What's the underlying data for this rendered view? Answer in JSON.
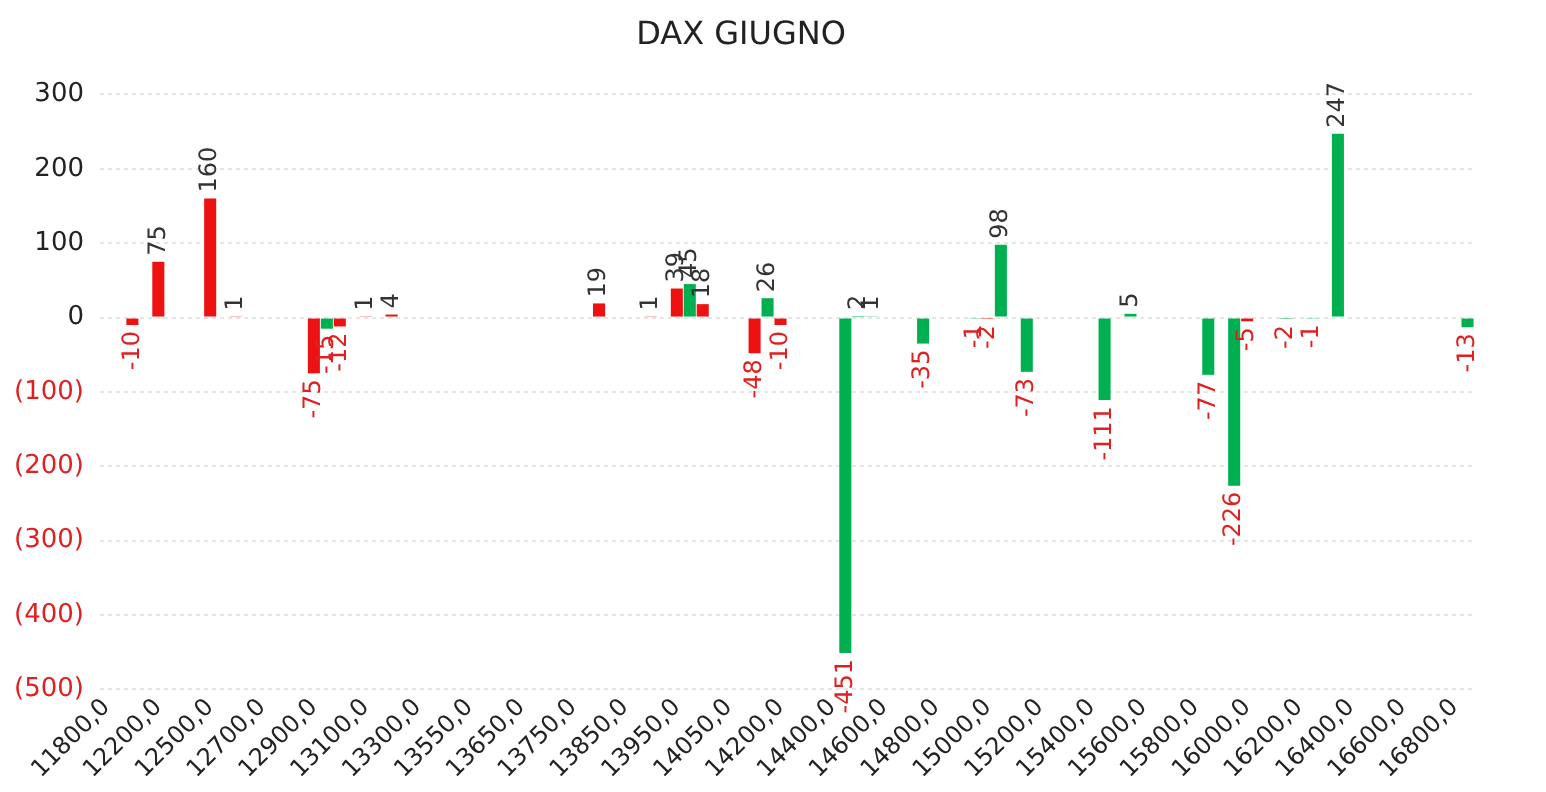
{
  "chart_data": {
    "type": "bar",
    "title": "DAX GIUGNO",
    "categories": [
      "11800,0",
      null,
      null,
      null,
      "12200,0",
      null,
      null,
      null,
      "12500,0",
      null,
      null,
      null,
      "12700,0",
      null,
      null,
      null,
      "12900,0",
      null,
      null,
      null,
      "13100,0",
      null,
      null,
      null,
      "13300,0",
      null,
      null,
      null,
      "13550,0",
      null,
      null,
      null,
      "13650,0",
      null,
      null,
      null,
      "13750,0",
      null,
      null,
      null,
      "13850,0",
      null,
      null,
      null,
      "13950,0",
      null,
      null,
      null,
      "14050,0",
      null,
      null,
      null,
      "14200,0",
      null,
      null,
      null,
      "14400,0",
      null,
      null,
      null,
      "14600,0",
      null,
      null,
      null,
      "14800,0",
      null,
      null,
      null,
      "15000,0",
      null,
      null,
      null,
      "15200,0",
      null,
      null,
      null,
      "15400,0",
      null,
      null,
      null,
      "15600,0",
      null,
      null,
      null,
      "15800,0",
      null,
      null,
      null,
      "16000,0",
      null,
      null,
      null,
      "16200,0",
      null,
      null,
      null,
      "16400,0",
      null,
      null,
      null,
      "16600,0",
      null,
      null,
      null,
      "16800,0",
      null
    ],
    "values": [
      null,
      null,
      -10,
      null,
      75,
      null,
      null,
      null,
      160,
      null,
      1,
      null,
      null,
      null,
      null,
      null,
      -75,
      -15,
      -12,
      null,
      1,
      null,
      4,
      null,
      null,
      null,
      null,
      null,
      null,
      null,
      null,
      null,
      null,
      null,
      null,
      null,
      null,
      null,
      19,
      null,
      null,
      null,
      1,
      null,
      39,
      45,
      18,
      null,
      null,
      null,
      -48,
      26,
      -10,
      null,
      null,
      null,
      null,
      -451,
      2,
      1,
      null,
      null,
      null,
      -35,
      null,
      null,
      null,
      -1,
      -2,
      98,
      null,
      -73,
      null,
      null,
      null,
      null,
      null,
      -111,
      null,
      5,
      null,
      null,
      null,
      null,
      null,
      -77,
      null,
      -226,
      -5,
      null,
      null,
      -2,
      null,
      -1,
      null,
      247,
      null,
      null,
      null,
      null,
      null,
      null,
      null,
      null,
      null,
      -13
    ],
    "colors": [
      null,
      null,
      "#ee1111",
      null,
      "#ee1111",
      null,
      null,
      null,
      "#ee1111",
      null,
      "#ee1111",
      null,
      null,
      null,
      null,
      null,
      "#ee1111",
      "#00b050",
      "#ee1111",
      null,
      "#ee1111",
      null,
      "#ee1111",
      null,
      null,
      null,
      null,
      null,
      null,
      null,
      null,
      null,
      null,
      null,
      null,
      null,
      null,
      null,
      "#ee1111",
      null,
      null,
      null,
      "#ee1111",
      null,
      "#ee1111",
      "#00b050",
      "#ee1111",
      null,
      null,
      null,
      "#ee1111",
      "#00b050",
      "#ee1111",
      null,
      null,
      null,
      null,
      "#00b050",
      "#00b050",
      "#00b050",
      null,
      null,
      null,
      "#00b050",
      null,
      null,
      null,
      "#00b050",
      "#ee1111",
      "#00b050",
      null,
      "#00b050",
      null,
      null,
      null,
      null,
      null,
      "#00b050",
      null,
      "#00b050",
      null,
      null,
      null,
      null,
      null,
      "#00b050",
      null,
      "#00b050",
      "#ee1111",
      null,
      null,
      "#00b050",
      null,
      "#00b050",
      null,
      "#00b050",
      null,
      null,
      null,
      null,
      null,
      null,
      null,
      null,
      null,
      "#00b050"
    ],
    "ylim": [
      -500,
      300
    ],
    "yticks": [
      300,
      200,
      100,
      0,
      {
        "value": -100,
        "label": "(100)"
      },
      {
        "value": -200,
        "label": "(200)"
      },
      {
        "value": -300,
        "label": "(300)"
      },
      {
        "value": -400,
        "label": "(400)"
      },
      {
        "value": -500,
        "label": "(500)"
      }
    ],
    "grid": "y",
    "data_labels": true,
    "legend": false
  }
}
